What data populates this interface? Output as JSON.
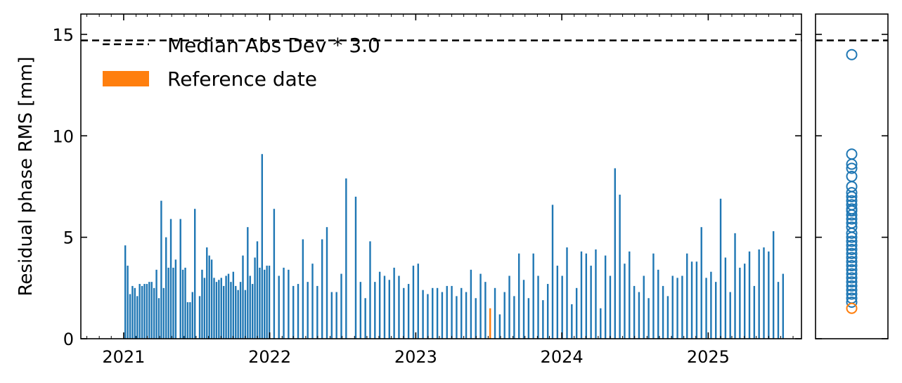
{
  "chart_data": {
    "type": "bar",
    "ylabel": "Residual phase RMS [mm]",
    "xlabel": "",
    "title": "",
    "x_range": [
      "2020-09-16",
      "2025-08-22"
    ],
    "ylim": [
      0,
      16
    ],
    "x_ticks": [
      {
        "date": "2021-01-01",
        "label": "2021"
      },
      {
        "date": "2022-01-01",
        "label": "2022"
      },
      {
        "date": "2023-01-01",
        "label": "2023"
      },
      {
        "date": "2024-01-01",
        "label": "2024"
      },
      {
        "date": "2025-01-01",
        "label": "2025"
      }
    ],
    "y_ticks": [
      0,
      5,
      10,
      15
    ],
    "grid": false,
    "legend_placement": "top-left",
    "threshold": {
      "name": "Median Abs Dev * 3.0",
      "value": 14.7,
      "style": "dashed",
      "color": "#000000"
    },
    "reference": {
      "name": "Reference date",
      "date": "2023-07-06",
      "value": 1.5,
      "color": "#ff7f0e"
    },
    "series": [
      {
        "color": "#1f77b4",
        "points": [
          [
            "2021-01-05",
            4.6
          ],
          [
            "2021-01-11",
            3.6
          ],
          [
            "2021-01-17",
            2.2
          ],
          [
            "2021-01-23",
            2.6
          ],
          [
            "2021-01-29",
            2.5
          ],
          [
            "2021-02-04",
            2.1
          ],
          [
            "2021-02-10",
            2.7
          ],
          [
            "2021-02-16",
            2.6
          ],
          [
            "2021-02-22",
            2.7
          ],
          [
            "2021-02-28",
            2.7
          ],
          [
            "2021-03-06",
            2.8
          ],
          [
            "2021-03-12",
            2.8
          ],
          [
            "2021-03-18",
            2.5
          ],
          [
            "2021-03-24",
            3.4
          ],
          [
            "2021-03-30",
            2.0
          ],
          [
            "2021-04-05",
            6.8
          ],
          [
            "2021-04-11",
            2.5
          ],
          [
            "2021-04-17",
            5.0
          ],
          [
            "2021-04-23",
            3.5
          ],
          [
            "2021-04-29",
            5.9
          ],
          [
            "2021-05-05",
            3.5
          ],
          [
            "2021-05-11",
            3.9
          ],
          [
            "2021-05-23",
            5.9
          ],
          [
            "2021-05-29",
            3.4
          ],
          [
            "2021-06-04",
            3.5
          ],
          [
            "2021-06-10",
            1.8
          ],
          [
            "2021-06-16",
            1.8
          ],
          [
            "2021-06-22",
            2.3
          ],
          [
            "2021-06-28",
            6.4
          ],
          [
            "2021-07-10",
            2.1
          ],
          [
            "2021-07-16",
            3.4
          ],
          [
            "2021-07-22",
            3.0
          ],
          [
            "2021-07-28",
            4.5
          ],
          [
            "2021-08-03",
            4.1
          ],
          [
            "2021-08-09",
            3.9
          ],
          [
            "2021-08-15",
            3.0
          ],
          [
            "2021-08-21",
            2.8
          ],
          [
            "2021-08-27",
            2.9
          ],
          [
            "2021-09-02",
            3.0
          ],
          [
            "2021-09-08",
            2.6
          ],
          [
            "2021-09-14",
            3.1
          ],
          [
            "2021-09-20",
            3.2
          ],
          [
            "2021-09-26",
            2.8
          ],
          [
            "2021-10-02",
            3.3
          ],
          [
            "2021-10-08",
            2.6
          ],
          [
            "2021-10-14",
            2.4
          ],
          [
            "2021-10-20",
            2.8
          ],
          [
            "2021-10-26",
            4.1
          ],
          [
            "2021-11-01",
            2.4
          ],
          [
            "2021-11-07",
            5.5
          ],
          [
            "2021-11-13",
            3.1
          ],
          [
            "2021-11-19",
            2.7
          ],
          [
            "2021-11-25",
            4.0
          ],
          [
            "2021-12-01",
            4.8
          ],
          [
            "2021-12-07",
            3.5
          ],
          [
            "2021-12-13",
            9.1
          ],
          [
            "2021-12-19",
            3.4
          ],
          [
            "2021-12-25",
            3.6
          ],
          [
            "2021-12-31",
            3.6
          ],
          [
            "2022-01-12",
            6.4
          ],
          [
            "2022-01-24",
            3.1
          ],
          [
            "2022-02-05",
            3.5
          ],
          [
            "2022-02-17",
            3.4
          ],
          [
            "2022-03-01",
            2.6
          ],
          [
            "2022-03-13",
            2.7
          ],
          [
            "2022-03-25",
            4.9
          ],
          [
            "2022-04-06",
            2.8
          ],
          [
            "2022-04-18",
            3.7
          ],
          [
            "2022-04-30",
            2.6
          ],
          [
            "2022-05-12",
            4.9
          ],
          [
            "2022-05-24",
            5.5
          ],
          [
            "2022-06-05",
            2.3
          ],
          [
            "2022-06-17",
            2.3
          ],
          [
            "2022-06-29",
            3.2
          ],
          [
            "2022-07-11",
            7.9
          ],
          [
            "2022-08-04",
            7.0
          ],
          [
            "2022-08-16",
            2.8
          ],
          [
            "2022-08-28",
            2.0
          ],
          [
            "2022-09-09",
            4.8
          ],
          [
            "2022-09-21",
            2.8
          ],
          [
            "2022-10-03",
            3.3
          ],
          [
            "2022-10-15",
            3.1
          ],
          [
            "2022-10-27",
            2.9
          ],
          [
            "2022-11-08",
            3.5
          ],
          [
            "2022-11-20",
            3.1
          ],
          [
            "2022-12-02",
            2.5
          ],
          [
            "2022-12-14",
            2.7
          ],
          [
            "2022-12-26",
            3.6
          ],
          [
            "2023-01-07",
            3.7
          ],
          [
            "2023-01-19",
            2.4
          ],
          [
            "2023-01-31",
            2.2
          ],
          [
            "2023-02-12",
            2.5
          ],
          [
            "2023-02-24",
            2.5
          ],
          [
            "2023-03-08",
            2.3
          ],
          [
            "2023-03-20",
            2.6
          ],
          [
            "2023-04-01",
            2.6
          ],
          [
            "2023-04-13",
            2.1
          ],
          [
            "2023-04-25",
            2.5
          ],
          [
            "2023-05-07",
            2.3
          ],
          [
            "2023-05-19",
            3.4
          ],
          [
            "2023-05-31",
            2.0
          ],
          [
            "2023-06-12",
            3.2
          ],
          [
            "2023-06-24",
            2.8
          ],
          [
            "2023-07-18",
            2.5
          ],
          [
            "2023-07-30",
            1.2
          ],
          [
            "2023-08-11",
            2.3
          ],
          [
            "2023-08-23",
            3.1
          ],
          [
            "2023-09-04",
            2.1
          ],
          [
            "2023-09-16",
            4.2
          ],
          [
            "2023-09-28",
            2.9
          ],
          [
            "2023-10-10",
            2.0
          ],
          [
            "2023-10-22",
            4.2
          ],
          [
            "2023-11-03",
            3.1
          ],
          [
            "2023-11-15",
            1.9
          ],
          [
            "2023-11-27",
            2.7
          ],
          [
            "2023-12-09",
            6.6
          ],
          [
            "2023-12-21",
            3.6
          ],
          [
            "2024-01-02",
            3.1
          ],
          [
            "2024-01-14",
            4.5
          ],
          [
            "2024-01-26",
            1.7
          ],
          [
            "2024-02-07",
            2.5
          ],
          [
            "2024-02-19",
            4.3
          ],
          [
            "2024-03-02",
            4.2
          ],
          [
            "2024-03-14",
            3.6
          ],
          [
            "2024-03-26",
            4.4
          ],
          [
            "2024-04-07",
            1.5
          ],
          [
            "2024-04-19",
            4.1
          ],
          [
            "2024-05-01",
            3.1
          ],
          [
            "2024-05-13",
            8.4
          ],
          [
            "2024-05-25",
            7.1
          ],
          [
            "2024-06-06",
            3.7
          ],
          [
            "2024-06-18",
            4.3
          ],
          [
            "2024-06-30",
            2.6
          ],
          [
            "2024-07-12",
            2.3
          ],
          [
            "2024-07-24",
            3.1
          ],
          [
            "2024-08-05",
            2.0
          ],
          [
            "2024-08-17",
            4.2
          ],
          [
            "2024-08-29",
            3.4
          ],
          [
            "2024-09-10",
            2.6
          ],
          [
            "2024-09-22",
            2.1
          ],
          [
            "2024-10-04",
            3.1
          ],
          [
            "2024-10-16",
            3.0
          ],
          [
            "2024-10-28",
            3.1
          ],
          [
            "2024-11-09",
            4.2
          ],
          [
            "2024-11-21",
            3.8
          ],
          [
            "2024-12-03",
            3.8
          ],
          [
            "2024-12-15",
            5.5
          ],
          [
            "2024-12-27",
            3.0
          ],
          [
            "2025-01-08",
            3.3
          ],
          [
            "2025-01-20",
            2.8
          ],
          [
            "2025-02-01",
            6.9
          ],
          [
            "2025-02-13",
            4.0
          ],
          [
            "2025-02-25",
            2.3
          ],
          [
            "2025-03-09",
            5.2
          ],
          [
            "2025-03-21",
            3.5
          ],
          [
            "2025-04-02",
            3.7
          ],
          [
            "2025-04-14",
            4.3
          ],
          [
            "2025-04-26",
            2.6
          ],
          [
            "2025-05-08",
            4.4
          ],
          [
            "2025-05-20",
            4.5
          ],
          [
            "2025-06-01",
            4.3
          ],
          [
            "2025-06-13",
            5.3
          ],
          [
            "2025-06-25",
            2.8
          ],
          [
            "2025-07-07",
            3.2
          ]
        ]
      }
    ],
    "side_scatter": {
      "ylim": [
        0,
        16
      ],
      "values_blue": [
        14.0,
        9.1,
        8.6,
        8.4,
        8.0,
        7.5,
        7.2,
        7.0,
        6.8,
        6.6,
        6.4,
        6.3,
        6.1,
        5.9,
        5.7,
        5.5,
        5.2,
        5.0,
        4.8,
        4.6,
        4.4,
        4.2,
        4.0,
        3.8,
        3.6,
        3.4,
        3.2,
        3.0,
        2.8,
        2.6,
        2.4,
        2.2,
        2.0,
        1.8
      ],
      "values_orange": [
        1.5
      ],
      "color_blue": "#1f77b4",
      "color_orange": "#ff7f0e"
    }
  }
}
